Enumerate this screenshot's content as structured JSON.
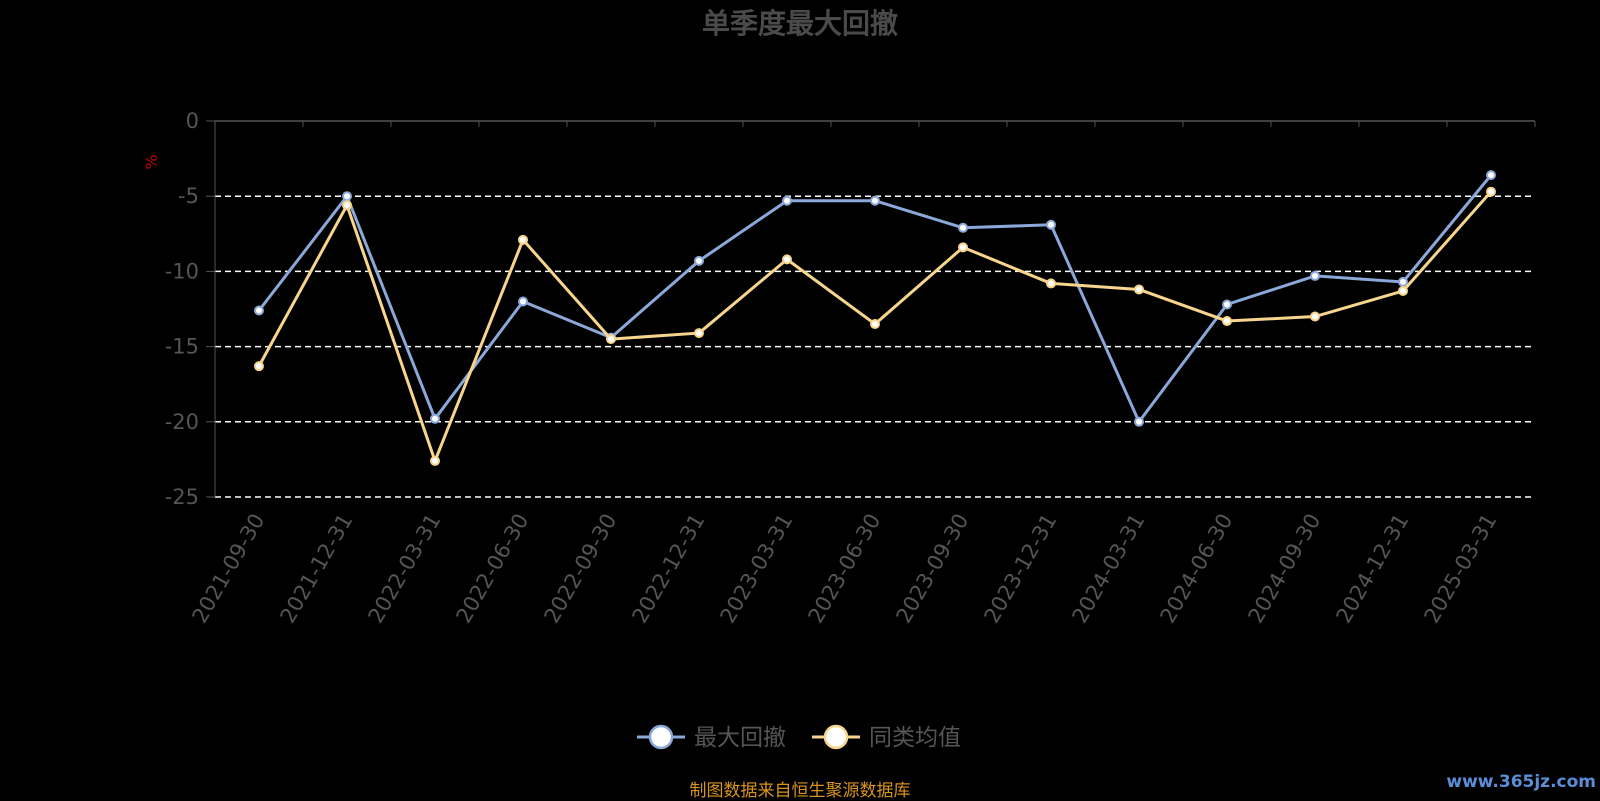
{
  "source_text": "制图数据来自恒生聚源数据库",
  "watermark_text": "www.365jz.com",
  "colors": {
    "series_1": "#8aa8d8",
    "series_2": "#f7d58c",
    "grid": "#ffffff",
    "axis": "#555555",
    "unit": "#c00000",
    "source": "#d8941e"
  },
  "chart_data": {
    "type": "line",
    "title": "单季度最大回撤",
    "ylabel": "%",
    "xlabel": "",
    "ylim": [
      -25,
      0
    ],
    "yticks": [
      0,
      -5,
      -10,
      -15,
      -20,
      -25
    ],
    "grid": "dashed-horizontal",
    "legend_position": "bottom-center",
    "categories": [
      "2021-09-30",
      "2021-12-31",
      "2022-03-31",
      "2022-06-30",
      "2022-09-30",
      "2022-12-31",
      "2023-03-31",
      "2023-06-30",
      "2023-09-30",
      "2023-12-31",
      "2024-03-31",
      "2024-06-30",
      "2024-09-30",
      "2024-12-31",
      "2025-03-31"
    ],
    "series": [
      {
        "name": "最大回撤",
        "values": [
          -12.6,
          -5.0,
          -19.8,
          -12.0,
          -14.4,
          -9.3,
          -5.3,
          -5.3,
          -7.1,
          -6.9,
          -20.0,
          -12.2,
          -10.3,
          -10.7,
          -3.6
        ]
      },
      {
        "name": "同类均值",
        "values": [
          -16.3,
          -5.6,
          -22.6,
          -7.9,
          -14.5,
          -14.1,
          -9.2,
          -13.5,
          -8.4,
          -10.8,
          -11.2,
          -13.3,
          -13.0,
          -11.3,
          -4.7
        ]
      }
    ]
  }
}
